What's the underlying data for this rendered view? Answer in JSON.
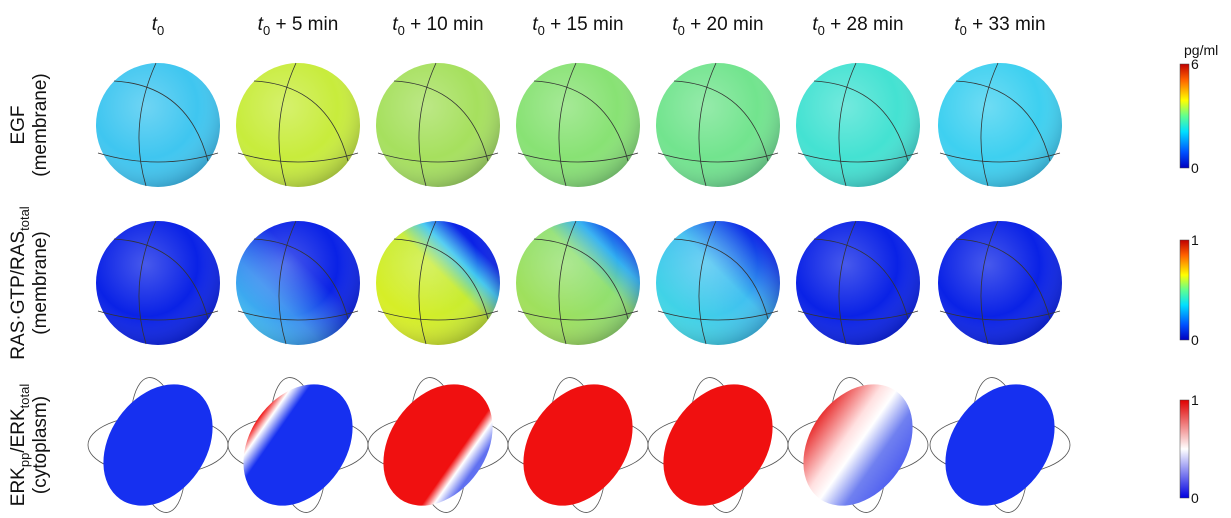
{
  "columns": [
    {
      "base": "t",
      "sub": "0"
    },
    {
      "base": "t",
      "sub": "0",
      "suffix": " + 5 min"
    },
    {
      "base": "t",
      "sub": "0",
      "suffix": " + 10 min"
    },
    {
      "base": "t",
      "sub": "0",
      "suffix": " + 15 min"
    },
    {
      "base": "t",
      "sub": "0",
      "suffix": " + 20 min"
    },
    {
      "base": "t",
      "sub": "0",
      "suffix": " + 28 min"
    },
    {
      "base": "t",
      "sub": "0",
      "suffix": " + 33 min"
    }
  ],
  "rows": [
    {
      "label": [
        {
          "text": "EGF"
        }
      ],
      "sublabel": "(membrane)",
      "colorbar": {
        "unit": "pg/ml",
        "max": 6,
        "min": 0
      }
    },
    {
      "label": [
        {
          "text": "RAS·GTP/RAS"
        },
        {
          "sub": "total"
        }
      ],
      "sublabel": "(membrane)",
      "colorbar": {
        "max": 1,
        "min": 0
      }
    },
    {
      "label": [
        {
          "text": "ERK"
        },
        {
          "sub": "pp"
        },
        {
          "text": "/ERK"
        },
        {
          "sub": "total"
        }
      ],
      "sublabel": "(cytoplasm)",
      "colorbar": {
        "max": 1,
        "min": 0
      }
    }
  ]
}
